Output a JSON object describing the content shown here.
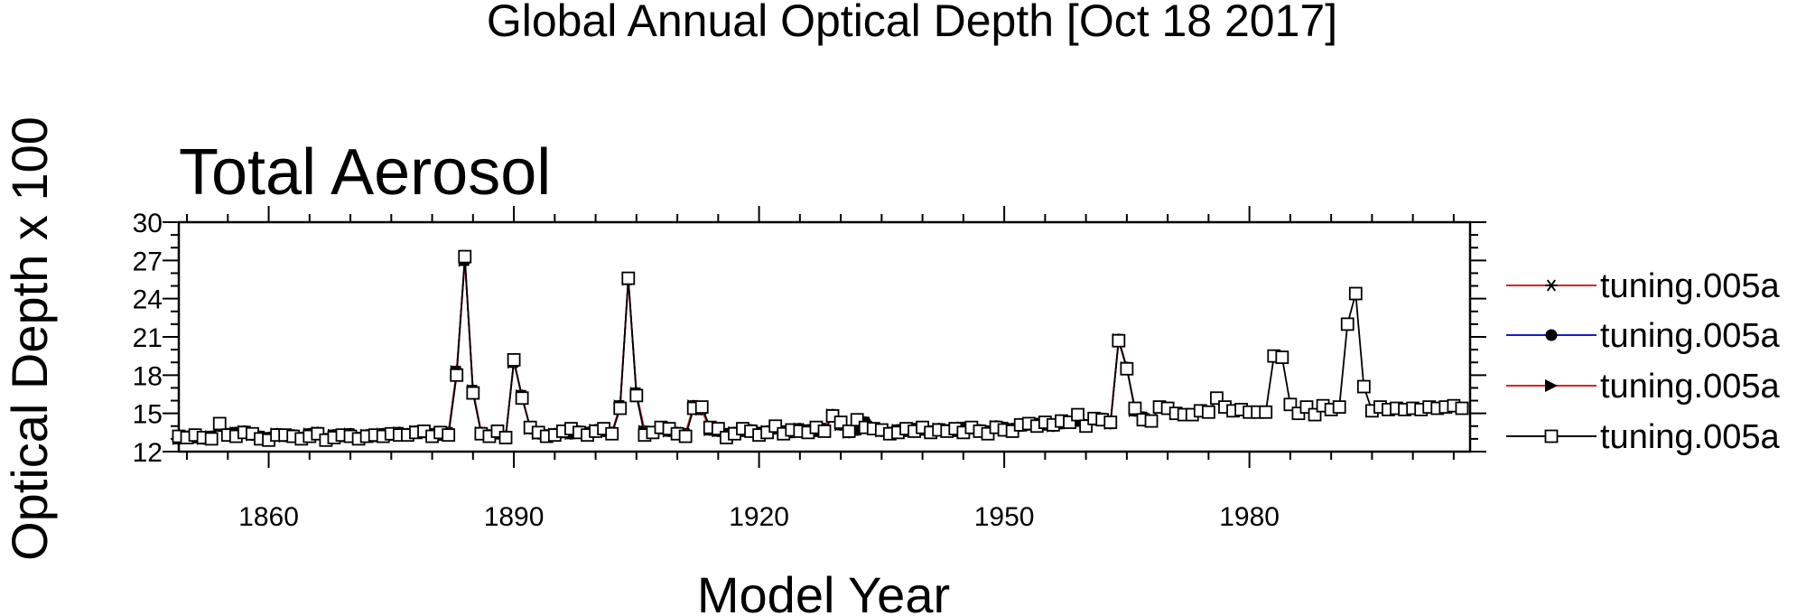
{
  "chart_data": {
    "type": "line",
    "title": "Global Annual Optical Depth [Oct 18 2017]",
    "subtitle": "Total Aerosol",
    "xlabel": "Model Year",
    "ylabel": "Optical Depth x 100",
    "xlim": [
      1849,
      2007
    ],
    "ylim": [
      12,
      30
    ],
    "x_ticks": [
      1860,
      1890,
      1920,
      1950,
      1980
    ],
    "y_ticks": [
      12,
      15,
      18,
      21,
      24,
      27,
      30
    ],
    "grid": false,
    "legend_position": "right",
    "series": [
      {
        "name": "tuning.005a",
        "color": "#dd2222",
        "marker": "asterisk",
        "x": [
          1849,
          1850,
          1851,
          1852,
          1853,
          1854,
          1855,
          1856,
          1857,
          1858,
          1859,
          1860,
          1861,
          1862,
          1863,
          1864,
          1865,
          1866,
          1867,
          1868,
          1869,
          1870,
          1871,
          1872,
          1873,
          1874,
          1875,
          1876,
          1877,
          1878,
          1879,
          1880,
          1881,
          1882,
          1883,
          1884,
          1885,
          1886,
          1887,
          1888,
          1889,
          1890,
          1891,
          1892,
          1893,
          1894,
          1895,
          1896,
          1897,
          1898,
          1899,
          1900,
          1901,
          1902,
          1903,
          1904,
          1905,
          1906,
          1907,
          1908,
          1909,
          1910,
          1911,
          1912,
          1913,
          1914,
          1915,
          1916,
          1917,
          1918,
          1919,
          1920,
          1921,
          1922,
          1923,
          1924,
          1925,
          1926,
          1927,
          1928,
          1929,
          1930,
          1931,
          1932,
          1933,
          1934,
          1935,
          1936,
          1937,
          1938,
          1939,
          1940,
          1941,
          1942,
          1943,
          1944,
          1945,
          1946,
          1947,
          1948,
          1949,
          1950,
          1951,
          1952,
          1953,
          1954,
          1955,
          1956,
          1957,
          1958,
          1959,
          1960,
          1961,
          1962,
          1963,
          1964,
          1965,
          1966,
          1967
        ],
        "y": [
          13.0,
          13.2,
          13.1,
          13.0,
          13.2,
          14.0,
          13.4,
          13.5,
          13.6,
          13.3,
          13.2,
          13.1,
          13.4,
          13.2,
          13.3,
          13.1,
          13.4,
          13.5,
          13.0,
          13.3,
          13.2,
          13.4,
          13.1,
          13.3,
          13.2,
          13.4,
          13.3,
          13.5,
          13.4,
          13.6,
          13.5,
          13.4,
          13.3,
          13.5,
          18.3,
          27.0,
          16.8,
          13.5,
          13.3,
          13.4,
          13.2,
          19.0,
          16.4,
          13.8,
          13.4,
          13.3,
          13.4,
          13.5,
          13.4,
          13.6,
          13.5,
          13.7,
          13.6,
          13.5,
          15.6,
          25.5,
          16.6,
          13.6,
          13.5,
          13.8,
          13.6,
          13.5,
          13.4,
          15.6,
          15.3,
          13.7,
          13.6,
          13.4,
          13.5,
          13.6,
          13.7,
          13.5,
          13.6,
          13.8,
          13.6,
          13.5,
          13.8,
          13.7,
          13.6,
          13.8,
          14.9,
          14.1,
          13.5,
          13.7,
          14.3,
          13.8,
          13.6,
          13.5,
          13.7,
          13.6,
          13.8,
          13.7,
          13.6,
          13.8,
          13.7,
          13.6,
          13.9,
          13.8,
          13.7,
          13.6,
          14.0,
          13.9,
          13.8,
          14.0,
          14.1,
          14.2,
          14.1,
          14.0,
          14.2,
          14.3,
          14.4,
          14.1,
          14.5,
          14.6,
          14.2,
          20.8,
          18.6,
          15.2,
          14.7
        ]
      },
      {
        "name": "tuning.005a",
        "color": "#1a1acc",
        "marker": "circle",
        "x": [
          1849,
          1850,
          1851,
          1852,
          1853,
          1854,
          1855,
          1856,
          1857,
          1858,
          1859,
          1860,
          1861,
          1862,
          1863,
          1864,
          1865,
          1866,
          1867,
          1868,
          1869,
          1870,
          1871,
          1872,
          1873,
          1874,
          1875,
          1876,
          1877,
          1878,
          1879,
          1880,
          1881,
          1882,
          1883,
          1884,
          1885,
          1886,
          1887,
          1888,
          1889,
          1890,
          1891,
          1892,
          1893,
          1894,
          1895,
          1896,
          1897,
          1898,
          1899,
          1900,
          1901,
          1902,
          1903,
          1904,
          1905,
          1906,
          1907,
          1908,
          1909,
          1910,
          1911,
          1912,
          1913,
          1914,
          1915,
          1916,
          1917,
          1918,
          1919,
          1920,
          1921,
          1922,
          1923,
          1924,
          1925,
          1926,
          1927,
          1928,
          1929,
          1930,
          1931,
          1932,
          1933,
          1934,
          1935,
          1936,
          1937,
          1938,
          1939,
          1940,
          1941,
          1942,
          1943,
          1944,
          1945,
          1946,
          1947,
          1948,
          1949,
          1950,
          1951,
          1952,
          1953,
          1954,
          1955,
          1956,
          1957,
          1958,
          1959,
          1960,
          1961,
          1962,
          1963,
          1964,
          1965,
          1966,
          1967
        ],
        "y": [
          13.0,
          13.2,
          13.1,
          13.0,
          13.2,
          14.0,
          13.4,
          13.5,
          13.6,
          13.3,
          13.2,
          13.1,
          13.4,
          13.2,
          13.3,
          13.1,
          13.4,
          13.5,
          13.0,
          13.3,
          13.2,
          13.4,
          13.1,
          13.3,
          13.2,
          13.4,
          13.3,
          13.5,
          13.4,
          13.6,
          13.5,
          13.4,
          13.3,
          13.5,
          18.3,
          27.0,
          16.8,
          13.5,
          13.3,
          13.4,
          13.2,
          19.0,
          16.4,
          13.8,
          13.4,
          13.3,
          13.4,
          13.5,
          13.4,
          13.6,
          13.5,
          13.7,
          13.6,
          13.5,
          15.6,
          25.5,
          16.6,
          13.6,
          13.5,
          13.8,
          13.6,
          13.5,
          13.4,
          15.6,
          15.3,
          13.7,
          13.6,
          13.4,
          13.5,
          13.6,
          13.7,
          13.5,
          13.6,
          13.8,
          13.6,
          13.5,
          13.8,
          13.7,
          13.6,
          13.8,
          14.9,
          14.1,
          13.5,
          13.7,
          14.3,
          13.8,
          13.6,
          13.5,
          13.7,
          13.6,
          13.8,
          13.7,
          13.6,
          13.8,
          13.7,
          13.6,
          13.9,
          13.8,
          13.7,
          13.6,
          14.0,
          13.9,
          13.8,
          14.0,
          14.1,
          14.2,
          14.1,
          14.0,
          14.2,
          14.3,
          14.4,
          14.1,
          14.5,
          14.6,
          14.2,
          20.8,
          18.6,
          15.2,
          14.7
        ]
      },
      {
        "name": "tuning.005a",
        "color": "#dd2222",
        "marker": "triangle",
        "x": [
          1849,
          1850,
          1851,
          1852,
          1853,
          1854,
          1855,
          1856,
          1857,
          1858,
          1859,
          1860,
          1861,
          1862,
          1863,
          1864,
          1865,
          1866,
          1867,
          1868,
          1869,
          1870,
          1871,
          1872,
          1873,
          1874,
          1875,
          1876,
          1877,
          1878,
          1879,
          1880,
          1881,
          1882,
          1883,
          1884,
          1885,
          1886,
          1887,
          1888,
          1889,
          1890,
          1891,
          1892,
          1893,
          1894,
          1895,
          1896,
          1897,
          1898,
          1899,
          1900,
          1901,
          1902,
          1903,
          1904,
          1905,
          1906,
          1907,
          1908,
          1909,
          1910,
          1911,
          1912,
          1913,
          1914,
          1915,
          1916,
          1917,
          1918,
          1919,
          1920,
          1921,
          1922,
          1923,
          1924,
          1925,
          1926,
          1927,
          1928,
          1929,
          1930,
          1931,
          1932,
          1933,
          1934,
          1935,
          1936,
          1937,
          1938,
          1939,
          1940,
          1941,
          1942,
          1943,
          1944,
          1945,
          1946,
          1947,
          1948,
          1949,
          1950,
          1951,
          1952,
          1953,
          1954,
          1955,
          1956,
          1957,
          1958,
          1959,
          1960,
          1961,
          1962,
          1963,
          1964,
          1965,
          1966,
          1967
        ],
        "y": [
          13.0,
          13.2,
          13.1,
          13.0,
          13.2,
          14.0,
          13.4,
          13.5,
          13.6,
          13.3,
          13.2,
          13.1,
          13.4,
          13.2,
          13.3,
          13.1,
          13.4,
          13.5,
          13.0,
          13.3,
          13.2,
          13.4,
          13.1,
          13.3,
          13.2,
          13.4,
          13.3,
          13.5,
          13.4,
          13.6,
          13.5,
          13.4,
          13.3,
          13.5,
          18.3,
          27.0,
          16.8,
          13.5,
          13.3,
          13.4,
          13.2,
          19.0,
          16.4,
          13.8,
          13.4,
          13.3,
          13.4,
          13.5,
          13.4,
          13.6,
          13.5,
          13.7,
          13.6,
          13.5,
          15.6,
          25.5,
          16.6,
          13.6,
          13.5,
          13.8,
          13.6,
          13.5,
          13.4,
          15.6,
          15.3,
          13.7,
          13.6,
          13.4,
          13.5,
          13.6,
          13.7,
          13.5,
          13.6,
          13.8,
          13.6,
          13.5,
          13.8,
          13.7,
          13.6,
          13.8,
          14.9,
          14.1,
          13.5,
          13.7,
          14.3,
          13.8,
          13.6,
          13.5,
          13.7,
          13.6,
          13.8,
          13.7,
          13.6,
          13.8,
          13.7,
          13.6,
          13.9,
          13.8,
          13.7,
          13.6,
          14.0,
          13.9,
          13.8,
          14.0,
          14.1,
          14.2,
          14.1,
          14.0,
          14.2,
          14.3,
          14.4,
          14.1,
          14.5,
          14.6,
          14.2,
          20.8,
          18.6,
          15.2,
          14.7
        ]
      },
      {
        "name": "tuning.005a",
        "color": "#000000",
        "marker": "square",
        "x": [
          1849,
          1850,
          1851,
          1852,
          1853,
          1854,
          1855,
          1856,
          1857,
          1858,
          1859,
          1860,
          1861,
          1862,
          1863,
          1864,
          1865,
          1866,
          1867,
          1868,
          1869,
          1870,
          1871,
          1872,
          1873,
          1874,
          1875,
          1876,
          1877,
          1878,
          1879,
          1880,
          1881,
          1882,
          1883,
          1884,
          1885,
          1886,
          1887,
          1888,
          1889,
          1890,
          1891,
          1892,
          1893,
          1894,
          1895,
          1896,
          1897,
          1898,
          1899,
          1900,
          1901,
          1902,
          1903,
          1904,
          1905,
          1906,
          1907,
          1908,
          1909,
          1910,
          1911,
          1912,
          1913,
          1914,
          1915,
          1916,
          1917,
          1918,
          1919,
          1920,
          1921,
          1922,
          1923,
          1924,
          1925,
          1926,
          1927,
          1928,
          1929,
          1930,
          1931,
          1932,
          1933,
          1934,
          1935,
          1936,
          1937,
          1938,
          1939,
          1940,
          1941,
          1942,
          1943,
          1944,
          1945,
          1946,
          1947,
          1948,
          1949,
          1950,
          1951,
          1952,
          1953,
          1954,
          1955,
          1956,
          1957,
          1958,
          1959,
          1960,
          1961,
          1962,
          1963,
          1964,
          1965,
          1966,
          1967,
          1968,
          1969,
          1970,
          1971,
          1972,
          1973,
          1974,
          1975,
          1976,
          1977,
          1978,
          1979,
          1980,
          1981,
          1982,
          1983,
          1984,
          1985,
          1986,
          1987,
          1988,
          1989,
          1990,
          1991,
          1992,
          1993,
          1994,
          1995,
          1996,
          1997,
          1998,
          1999,
          2000,
          2001,
          2002,
          2003,
          2004,
          2005,
          2006
        ],
        "y": [
          13.2,
          13.1,
          13.3,
          13.1,
          13.0,
          14.2,
          13.3,
          13.2,
          13.5,
          13.4,
          13.0,
          12.9,
          13.3,
          13.3,
          13.2,
          13.0,
          13.2,
          13.4,
          12.9,
          13.1,
          13.3,
          13.2,
          13.0,
          13.2,
          13.3,
          13.2,
          13.4,
          13.3,
          13.3,
          13.5,
          13.6,
          13.2,
          13.5,
          13.3,
          18.0,
          27.3,
          16.6,
          13.4,
          13.2,
          13.6,
          13.1,
          19.2,
          16.2,
          13.9,
          13.5,
          13.2,
          13.3,
          13.6,
          13.8,
          13.5,
          13.3,
          13.6,
          13.8,
          13.4,
          15.4,
          25.6,
          16.4,
          13.3,
          13.5,
          13.9,
          13.8,
          13.4,
          13.2,
          15.4,
          15.5,
          13.9,
          13.8,
          13.1,
          13.4,
          13.8,
          13.6,
          13.3,
          13.5,
          14.0,
          13.4,
          13.7,
          13.6,
          13.5,
          13.9,
          13.6,
          14.8,
          14.3,
          13.6,
          14.5,
          13.9,
          13.8,
          13.7,
          13.4,
          13.5,
          13.8,
          13.6,
          13.9,
          13.5,
          13.7,
          13.6,
          13.8,
          13.5,
          13.9,
          13.6,
          13.4,
          13.9,
          13.7,
          13.6,
          14.1,
          14.2,
          14.0,
          14.3,
          14.1,
          14.4,
          14.3,
          14.9,
          14.0,
          14.6,
          14.5,
          14.3,
          20.7,
          18.5,
          15.4,
          14.5,
          14.4,
          15.5,
          15.4,
          15.0,
          14.9,
          14.9,
          15.2,
          15.1,
          16.2,
          15.5,
          15.2,
          15.3,
          15.1,
          15.1,
          15.1,
          19.5,
          19.4,
          15.7,
          15.0,
          15.5,
          14.9,
          15.6,
          15.3,
          15.5,
          22.0,
          24.4,
          17.1,
          15.2,
          15.5,
          15.3,
          15.4,
          15.3,
          15.4,
          15.3,
          15.5,
          15.4,
          15.5,
          15.6,
          15.4
        ]
      }
    ]
  }
}
